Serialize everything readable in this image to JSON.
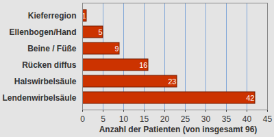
{
  "chart_data": {
    "type": "bar",
    "orientation": "horizontal",
    "categories": [
      "Kieferregion",
      "Ellenbogen/Hand",
      "Beine / Füße",
      "Rücken diffus",
      "Halswirbelsäule",
      "Lendenwirbelsäule"
    ],
    "values": [
      1,
      5,
      9,
      16,
      23,
      42
    ],
    "color": "#cc3300",
    "x_label": "Anzahl der Patienten (von insgesamt 96)",
    "xlim": [
      0,
      45
    ],
    "xticks": [
      0,
      5,
      10,
      15,
      20,
      25,
      30,
      35,
      40,
      45
    ],
    "grid": true,
    "data_labels": true
  }
}
